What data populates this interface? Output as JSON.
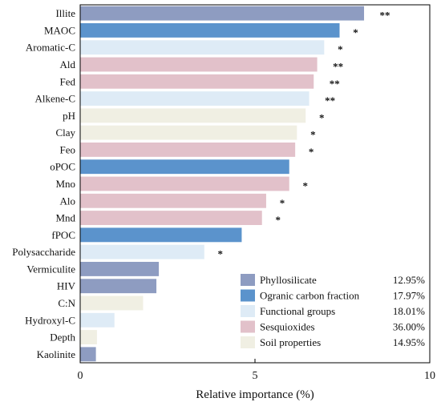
{
  "chart_data": {
    "type": "bar",
    "orientation": "horizontal",
    "xlabel": "Relative importance (%)",
    "xlim": [
      0,
      10
    ],
    "xticks": [
      "0",
      "5",
      "10"
    ],
    "grid": false,
    "legend_position": "bottom-right",
    "groups": [
      {
        "name": "Phyllosilicate",
        "color": "#8e9cc1",
        "share": "12.95%"
      },
      {
        "name": "Ogranic carbon fraction",
        "color": "#5b93cc",
        "share": "17.97%"
      },
      {
        "name": "Functional groups",
        "color": "#deebf6",
        "share": "18.01%"
      },
      {
        "name": "Sesquioxides",
        "color": "#e2c1ca",
        "share": "36.00%"
      },
      {
        "name": "Soil properties",
        "color": "#f0efe3",
        "share": "14.95%"
      }
    ],
    "bars": [
      {
        "label": "Illite",
        "value": 8.12,
        "group": 0,
        "sig": "**"
      },
      {
        "label": "MAOC",
        "value": 7.42,
        "group": 1,
        "sig": "*"
      },
      {
        "label": "Aromatic-C",
        "value": 6.98,
        "group": 2,
        "sig": "*"
      },
      {
        "label": "Ald",
        "value": 6.78,
        "group": 3,
        "sig": "**"
      },
      {
        "label": "Fed",
        "value": 6.68,
        "group": 3,
        "sig": "**"
      },
      {
        "label": "Alkene-C",
        "value": 6.55,
        "group": 2,
        "sig": "**"
      },
      {
        "label": "pH",
        "value": 6.45,
        "group": 4,
        "sig": "*"
      },
      {
        "label": "Clay",
        "value": 6.2,
        "group": 4,
        "sig": "*"
      },
      {
        "label": "Feo",
        "value": 6.15,
        "group": 3,
        "sig": "*"
      },
      {
        "label": "oPOC",
        "value": 5.98,
        "group": 1,
        "sig": ""
      },
      {
        "label": "Mno",
        "value": 5.98,
        "group": 3,
        "sig": "*"
      },
      {
        "label": "Alo",
        "value": 5.32,
        "group": 3,
        "sig": "*"
      },
      {
        "label": "Mnd",
        "value": 5.2,
        "group": 3,
        "sig": "*"
      },
      {
        "label": "fPOC",
        "value": 4.62,
        "group": 1,
        "sig": ""
      },
      {
        "label": "Polysaccharide",
        "value": 3.55,
        "group": 2,
        "sig": "*"
      },
      {
        "label": "Vermiculite",
        "value": 2.25,
        "group": 0,
        "sig": ""
      },
      {
        "label": "HIV",
        "value": 2.18,
        "group": 0,
        "sig": ""
      },
      {
        "label": "C:N",
        "value": 1.8,
        "group": 4,
        "sig": ""
      },
      {
        "label": "Hydroxyl-C",
        "value": 0.98,
        "group": 2,
        "sig": ""
      },
      {
        "label": "Depth",
        "value": 0.48,
        "group": 4,
        "sig": ""
      },
      {
        "label": "Kaolinite",
        "value": 0.45,
        "group": 0,
        "sig": ""
      }
    ]
  }
}
